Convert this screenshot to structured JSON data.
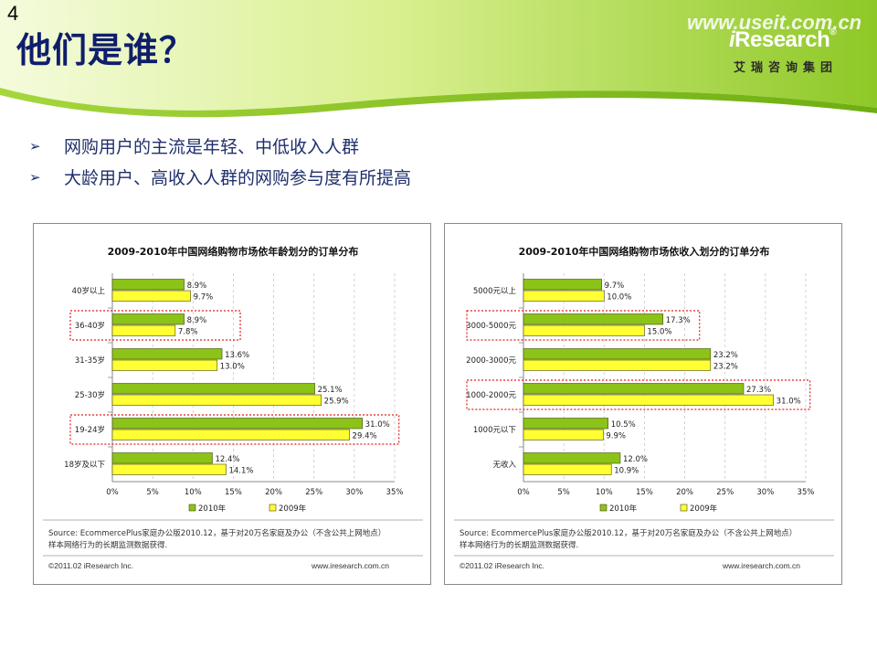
{
  "page": {
    "number": "4",
    "title": "他们是谁？",
    "watermark": "www.useit.com.cn",
    "logo_i": "i",
    "logo_rest": "Research",
    "logo_reg": "®",
    "logo_cn": "艾瑞咨询集团",
    "bullet_arrow": "➢"
  },
  "bullets": [
    "网购用户的主流是年轻、中低收入人群",
    "大龄用户、高收入人群的网购参与度有所提高"
  ],
  "colors": {
    "series_2010": "#8cc318",
    "series_2009": "#ffff33",
    "highlight": "#e0201c",
    "banner_light": "#eef8c8",
    "banner_mid": "#b9e25a",
    "banner_dark": "#86c21e"
  },
  "chart_data": [
    {
      "type": "bar",
      "orientation": "horizontal",
      "title": "2009-2010年中国网络购物市场依年龄划分的订单分布",
      "categories": [
        "40岁以上",
        "36-40岁",
        "31-35岁",
        "25-30岁",
        "19-24岁",
        "18岁及以下"
      ],
      "series": [
        {
          "name": "2010年",
          "values": [
            8.9,
            8.9,
            13.6,
            25.1,
            31.0,
            12.4
          ]
        },
        {
          "name": "2009年",
          "values": [
            9.7,
            7.8,
            13.0,
            25.9,
            29.4,
            14.1
          ]
        }
      ],
      "value_labels": {
        "2010年": [
          "8.9%",
          "8.9%",
          "13.6%",
          "25.1%",
          "31.0%",
          "12.4%"
        ],
        "2009年": [
          "9.7%",
          "7.8%",
          "13.0%",
          "25.9%",
          "29.4%",
          "14.1%"
        ]
      },
      "highlighted": [
        "36-40岁",
        "19-24岁"
      ],
      "xlim": [
        0,
        35
      ],
      "ticks": [
        "0%",
        "5%",
        "10%",
        "15%",
        "20%",
        "25%",
        "30%",
        "35%"
      ],
      "legend": "bottom",
      "grid": true,
      "source": [
        "Source: EcommercePlus家庭办公版2010.12，基于对20万名家庭及办公（不含公共上网地点）",
        "样本网络行为的长期监测数据获得."
      ],
      "copyright": "©2011.02 iResearch Inc.",
      "url": "www.iresearch.com.cn"
    },
    {
      "type": "bar",
      "orientation": "horizontal",
      "title": "2009-2010年中国网络购物市场依收入划分的订单分布",
      "categories": [
        "5000元以上",
        "3000-5000元",
        "2000-3000元",
        "1000-2000元",
        "1000元以下",
        "无收入"
      ],
      "series": [
        {
          "name": "2010年",
          "values": [
            9.7,
            17.3,
            23.2,
            27.3,
            10.5,
            12.0
          ]
        },
        {
          "name": "2009年",
          "values": [
            10.0,
            15.0,
            23.2,
            31.0,
            9.9,
            10.9
          ]
        }
      ],
      "value_labels": {
        "2010年": [
          "9.7%",
          "17.3%",
          "23.2%",
          "27.3%",
          "10.5%",
          "12.0%"
        ],
        "2009年": [
          "10.0%",
          "15.0%",
          "23.2%",
          "31.0%",
          "9.9%",
          "10.9%"
        ]
      },
      "highlighted": [
        "3000-5000元",
        "1000-2000元"
      ],
      "xlim": [
        0,
        35
      ],
      "ticks": [
        "0%",
        "5%",
        "10%",
        "15%",
        "20%",
        "25%",
        "30%",
        "35%"
      ],
      "legend": "bottom",
      "grid": true,
      "source": [
        "Source: EcommercePlus家庭办公版2010.12，基于对20万名家庭及办公（不含公共上网地点）",
        "样本网络行为的长期监测数据获得."
      ],
      "copyright": "©2011.02 iResearch Inc.",
      "url": "www.iresearch.com.cn"
    }
  ]
}
